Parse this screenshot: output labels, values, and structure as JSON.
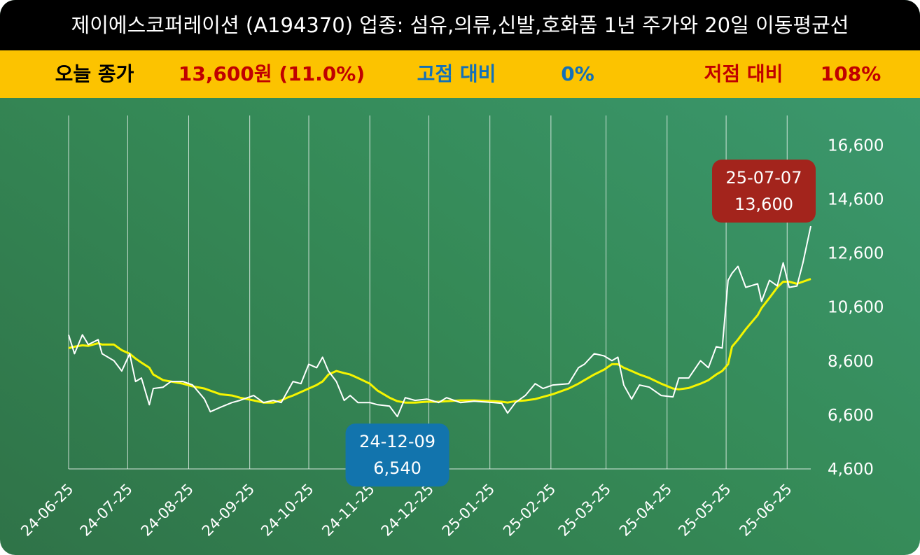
{
  "chart_data": {
    "type": "line",
    "title": "제이에스코퍼레이션 (A194370) 업종: 섬유,의류,신발,호화품  1년 주가와 20일 이동평균선",
    "summary": [
      {
        "label": "오늘 종가",
        "value": "13,600원 (11.0%)"
      },
      {
        "label": "고점 대비",
        "value": "0%"
      },
      {
        "label": "저점 대비",
        "value": "108%"
      }
    ],
    "x": [
      "24-06-25",
      "24-06-28",
      "24-07-02",
      "24-07-05",
      "24-07-10",
      "24-07-12",
      "24-07-18",
      "24-07-22",
      "24-07-26",
      "24-07-29",
      "24-08-01",
      "24-08-05",
      "24-08-07",
      "24-08-12",
      "24-08-16",
      "24-08-22",
      "24-08-27",
      "24-09-02",
      "24-09-05",
      "24-09-10",
      "24-09-16",
      "24-09-20",
      "24-09-27",
      "24-10-02",
      "24-10-07",
      "24-10-11",
      "24-10-14",
      "24-10-17",
      "24-10-21",
      "24-10-25",
      "24-10-29",
      "24-11-01",
      "24-11-04",
      "24-11-08",
      "24-11-12",
      "24-11-15",
      "24-11-19",
      "24-11-25",
      "24-11-29",
      "24-12-05",
      "24-12-09",
      "24-12-13",
      "24-12-18",
      "24-12-24",
      "24-12-30",
      "25-01-03",
      "25-01-10",
      "25-01-17",
      "25-01-27",
      "25-01-31",
      "25-02-03",
      "25-02-07",
      "25-02-12",
      "25-02-17",
      "25-02-21",
      "25-02-26",
      "25-03-06",
      "25-03-11",
      "25-03-14",
      "25-03-19",
      "25-03-24",
      "25-03-28",
      "25-03-31",
      "25-04-03",
      "25-04-07",
      "25-04-11",
      "25-04-16",
      "25-04-22",
      "25-04-28",
      "25-05-01",
      "25-05-06",
      "25-05-12",
      "25-05-16",
      "25-05-20",
      "25-05-23",
      "25-05-26",
      "25-05-28",
      "25-05-31",
      "25-06-04",
      "25-06-10",
      "25-06-12",
      "25-06-16",
      "25-06-20",
      "25-06-23",
      "25-06-26",
      "25-06-30",
      "25-07-03",
      "25-07-07"
    ],
    "series": [
      {
        "color": "#ffffff",
        "values": [
          9570,
          8870,
          9570,
          9210,
          9390,
          8870,
          8610,
          8230,
          8870,
          7840,
          7970,
          6980,
          7580,
          7630,
          7840,
          7840,
          7710,
          7190,
          6720,
          6880,
          7060,
          7140,
          7320,
          7060,
          7140,
          7060,
          7450,
          7840,
          7760,
          8480,
          8350,
          8740,
          8230,
          7840,
          7140,
          7320,
          7060,
          7060,
          6980,
          6930,
          6540,
          7240,
          7140,
          7190,
          7060,
          7240,
          7060,
          7110,
          7060,
          7030,
          6670,
          7060,
          7320,
          7760,
          7580,
          7710,
          7760,
          8350,
          8480,
          8870,
          8790,
          8610,
          8740,
          7710,
          7190,
          7710,
          7630,
          7320,
          7270,
          7970,
          7970,
          8610,
          8350,
          9130,
          9080,
          11590,
          11850,
          12110,
          11330,
          11460,
          10810,
          11590,
          11380,
          12240,
          11330,
          11380,
          12240,
          13600
        ]
      },
      {
        "color": "#f5f500",
        "values": [
          9080,
          9130,
          9180,
          9160,
          9260,
          9210,
          9210,
          9000,
          8870,
          8690,
          8540,
          8350,
          8100,
          7890,
          7840,
          7760,
          7660,
          7580,
          7500,
          7370,
          7320,
          7240,
          7140,
          7060,
          7060,
          7140,
          7240,
          7320,
          7450,
          7580,
          7710,
          7840,
          8100,
          8230,
          8150,
          8100,
          7970,
          7760,
          7500,
          7240,
          7110,
          7060,
          7060,
          7090,
          7090,
          7110,
          7140,
          7140,
          7110,
          7090,
          7060,
          7110,
          7140,
          7190,
          7270,
          7370,
          7580,
          7760,
          7890,
          8100,
          8280,
          8480,
          8480,
          8350,
          8230,
          8100,
          7970,
          7760,
          7580,
          7550,
          7600,
          7760,
          7890,
          8100,
          8230,
          8480,
          9130,
          9390,
          9780,
          10300,
          10560,
          10940,
          11330,
          11540,
          11540,
          11460,
          11540,
          11640
        ]
      }
    ],
    "xlim": [
      "24-06-25",
      "25-07-07"
    ],
    "xticks": [
      "24-06-25",
      "24-07-25",
      "24-08-25",
      "24-09-25",
      "24-10-25",
      "24-11-25",
      "24-12-25",
      "25-01-25",
      "25-02-25",
      "25-03-25",
      "25-04-25",
      "25-05-25",
      "25-06-25"
    ],
    "ylim": [
      4600,
      17700
    ],
    "yticks": [
      {
        "value": 4600,
        "label": "4,600"
      },
      {
        "value": 6600,
        "label": "6,600"
      },
      {
        "value": 8600,
        "label": "8,600"
      },
      {
        "value": 10600,
        "label": "10,600"
      },
      {
        "value": 12600,
        "label": "12,600"
      },
      {
        "value": 14600,
        "label": "14,600"
      },
      {
        "value": 16600,
        "label": "16,600"
      }
    ],
    "grid": true,
    "annotations": [
      {
        "date": "25-07-07",
        "label": "13,600",
        "color": "#a3241c"
      },
      {
        "date": "24-12-09",
        "label": "6,540",
        "color": "#1274ad"
      }
    ]
  }
}
